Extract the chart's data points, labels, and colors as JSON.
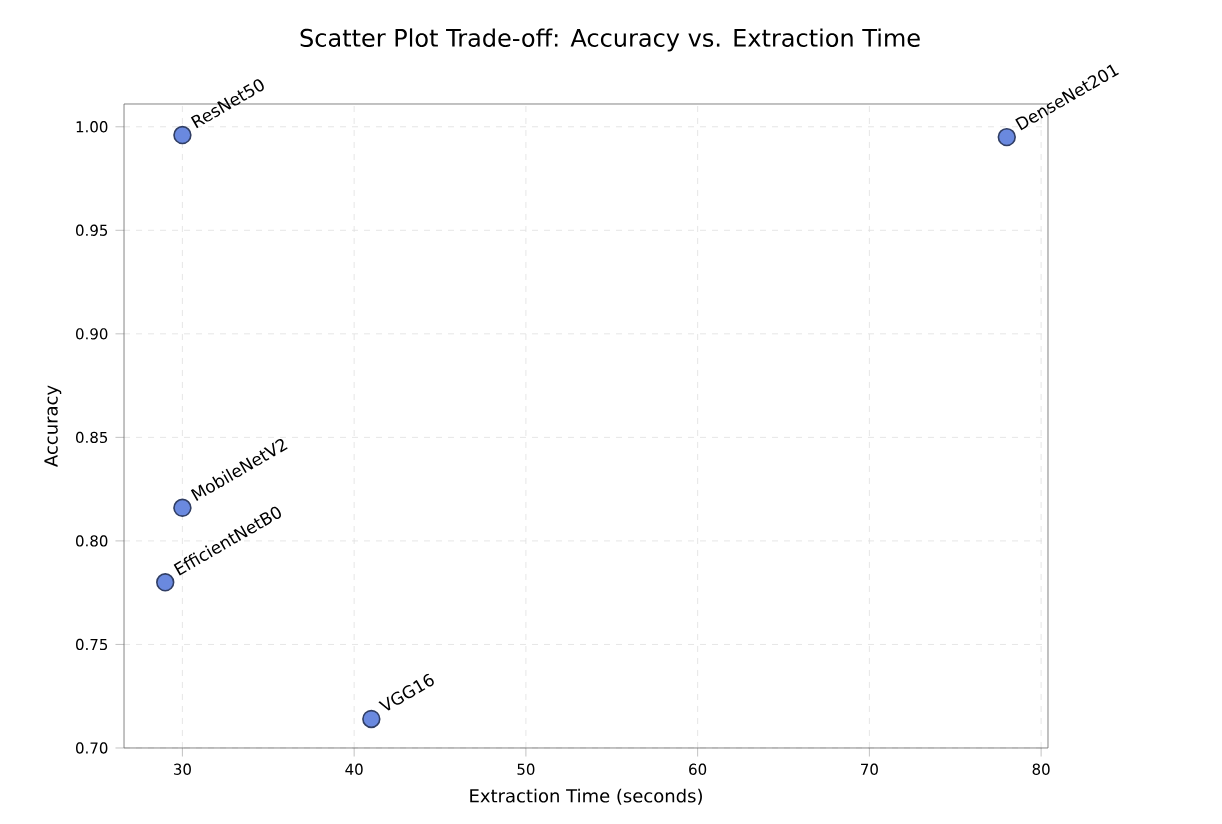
{
  "chart_data": {
    "type": "scatter",
    "title": "Scatter Plot Trade-off: Accuracy vs. Extraction Time",
    "xlabel": "Extraction Time (seconds)",
    "ylabel": "Accuracy",
    "series": [
      {
        "color": "#6a89df",
        "x": [
          30,
          78,
          30,
          29,
          41
        ],
        "values": [
          0.996,
          0.995,
          0.816,
          0.78,
          0.714
        ]
      }
    ],
    "annotations": [
      {
        "text": "ResNet50",
        "x": 30,
        "y": 0.996
      },
      {
        "text": "DenseNet201",
        "x": 78,
        "y": 0.995
      },
      {
        "text": "MobileNetV2",
        "x": 30,
        "y": 0.816
      },
      {
        "text": "EfficientNetB0",
        "x": 29,
        "y": 0.78
      },
      {
        "text": "VGG16",
        "x": 41,
        "y": 0.714
      }
    ],
    "xlim": [
      26.6,
      80.4
    ],
    "ylim": [
      0.7,
      1.011
    ],
    "xticks": [
      30,
      40,
      50,
      60,
      70,
      80
    ],
    "yticks": [
      {
        "value": 0.7,
        "label": "0.70"
      },
      {
        "value": 0.75,
        "label": "0.75"
      },
      {
        "value": 0.8,
        "label": "0.80"
      },
      {
        "value": 0.85,
        "label": "0.85"
      },
      {
        "value": 0.9,
        "label": "0.90"
      },
      {
        "value": 0.95,
        "label": "0.95"
      },
      {
        "value": 1.0,
        "label": "1.00"
      }
    ],
    "grid": true,
    "marker": "circle"
  }
}
